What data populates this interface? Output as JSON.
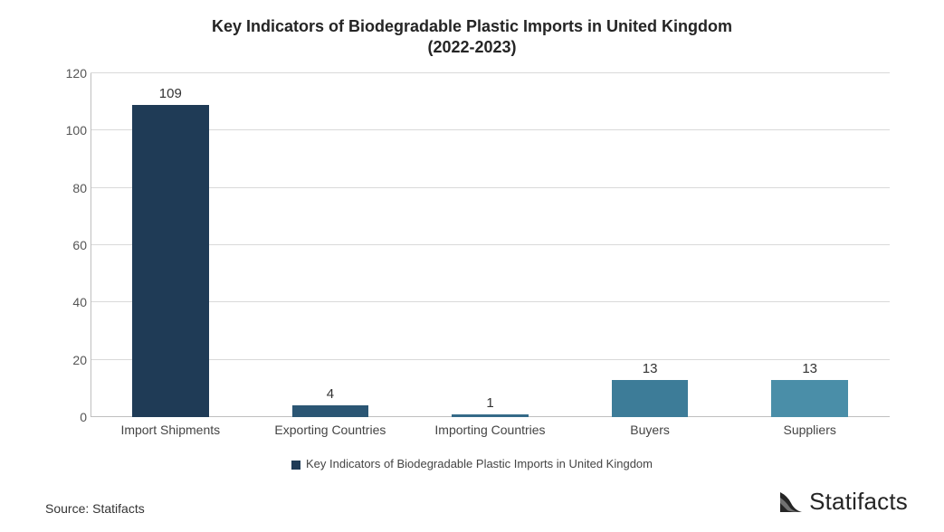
{
  "chart": {
    "type": "bar",
    "title_line1": "Key Indicators of Biodegradable Plastic Imports in United Kingdom",
    "title_line2": "(2022-2023)",
    "title_fontsize": 18,
    "title_color": "#252525",
    "categories": [
      "Import Shipments",
      "Exporting Countries",
      "Importing Countries",
      "Buyers",
      "Suppliers"
    ],
    "values": [
      109,
      4,
      1,
      13,
      13
    ],
    "bar_colors": [
      "#1f3b56",
      "#2b5674",
      "#356a88",
      "#3d7c98",
      "#4a8ea8"
    ],
    "value_label_fontsize": 15,
    "value_label_color": "#333333",
    "x_label_fontsize": 14,
    "x_label_color": "#444444",
    "ylim": [
      0,
      120
    ],
    "ytick_step": 20,
    "yticks": [
      0,
      20,
      40,
      60,
      80,
      100,
      120
    ],
    "y_label_fontsize": 14,
    "y_label_color": "#555555",
    "grid_color": "#d9d9d9",
    "axis_color": "#bfbfbf",
    "background_color": "#ffffff",
    "bar_width_ratio": 0.48,
    "legend_label": "Key Indicators of Biodegradable Plastic Imports in United Kingdom",
    "legend_swatch_color": "#1f3b56",
    "legend_fontsize": 13
  },
  "footer": {
    "source_text": "Source: Statifacts",
    "source_fontsize": 14,
    "brand_name": "Statifacts",
    "brand_fontsize": 26,
    "brand_icon_color": "#252525"
  }
}
